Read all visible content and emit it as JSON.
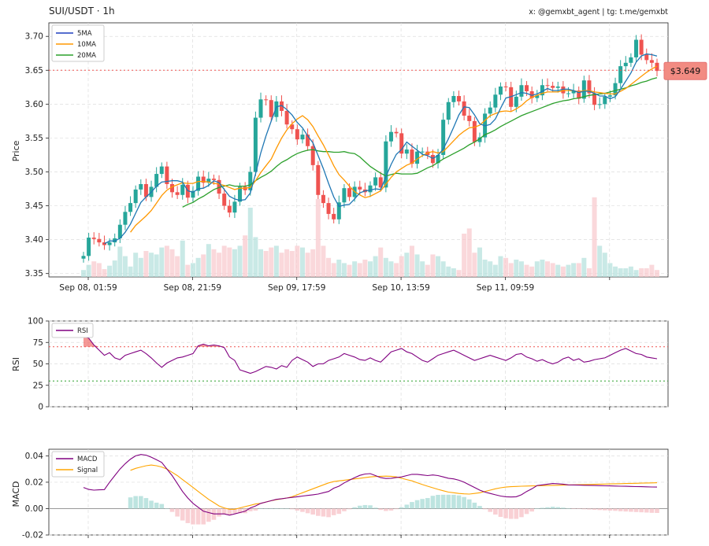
{
  "header": {
    "title": "SUI/USDT · 1h",
    "credit": "x: @gemxbt_agent | tg: t.me/gemxbt"
  },
  "colors": {
    "up": "#26a69a",
    "down": "#ef5350",
    "ma5": "#1f77b4",
    "ma10": "#ff9800",
    "ma20": "#2ca02c",
    "rsi": "#800080",
    "macd": "#800080",
    "signal": "#ffa500",
    "price_tag": "#f28b82"
  },
  "chart_data": [
    {
      "type": "candlestick",
      "ylabel": "Price",
      "ylim": [
        3.345,
        3.72
      ],
      "y_ticks": [
        3.35,
        3.4,
        3.45,
        3.5,
        3.55,
        3.6,
        3.65,
        3.7
      ],
      "x_tick_labels": [
        "Sep 08, 01:59",
        "Sep 08, 21:59",
        "Sep 09, 17:59",
        "Sep 10, 13:59",
        "Sep 11, 09:59"
      ],
      "x_tick_index": [
        0,
        20,
        40,
        60,
        80
      ],
      "last_price_label": "$3.649",
      "last_price": 3.649,
      "legend": [
        "5MA",
        "10MA",
        "20MA"
      ],
      "legend_position": "top-left",
      "grid": true,
      "close": [
        3.376,
        3.403,
        3.401,
        3.396,
        3.392,
        3.396,
        3.402,
        3.422,
        3.441,
        3.454,
        3.474,
        3.482,
        3.463,
        3.478,
        3.497,
        3.508,
        3.482,
        3.47,
        3.466,
        3.481,
        3.462,
        3.472,
        3.493,
        3.484,
        3.49,
        3.488,
        3.468,
        3.45,
        3.44,
        3.456,
        3.478,
        3.473,
        3.5,
        3.58,
        3.607,
        3.606,
        3.581,
        3.604,
        3.59,
        3.57,
        3.563,
        3.548,
        3.555,
        3.538,
        3.51,
        3.466,
        3.454,
        3.438,
        3.43,
        3.455,
        3.476,
        3.463,
        3.478,
        3.474,
        3.47,
        3.48,
        3.492,
        3.477,
        3.545,
        3.559,
        3.557,
        3.527,
        3.533,
        3.512,
        3.53,
        3.53,
        3.525,
        3.513,
        3.525,
        3.577,
        3.603,
        3.612,
        3.604,
        3.583,
        3.575,
        3.544,
        3.551,
        3.586,
        3.595,
        3.614,
        3.626,
        3.625,
        3.596,
        3.611,
        3.628,
        3.619,
        3.609,
        3.613,
        3.628,
        3.627,
        3.624,
        3.626,
        3.616,
        3.616,
        3.62,
        3.608,
        3.635,
        3.616,
        3.599,
        3.6,
        3.611,
        3.613,
        3.631,
        3.656,
        3.661,
        3.669,
        3.695,
        3.673,
        3.665,
        3.661,
        3.649
      ],
      "ma5": [
        null,
        null,
        null,
        null,
        3.394,
        3.398,
        3.398,
        3.402,
        3.411,
        3.423,
        3.439,
        3.455,
        3.463,
        3.47,
        3.479,
        3.485,
        3.486,
        3.487,
        3.487,
        3.485,
        3.472,
        3.47,
        3.475,
        3.476,
        3.48,
        3.487,
        3.484,
        3.474,
        3.464,
        3.46,
        3.458,
        3.459,
        3.469,
        3.497,
        3.528,
        3.553,
        3.575,
        3.596,
        3.598,
        3.592,
        3.584,
        3.573,
        3.565,
        3.553,
        3.543,
        3.524,
        3.505,
        3.483,
        3.463,
        3.449,
        3.451,
        3.452,
        3.46,
        3.469,
        3.472,
        3.473,
        3.475,
        3.474,
        3.493,
        3.511,
        3.526,
        3.533,
        3.544,
        3.538,
        3.532,
        3.526,
        3.524,
        3.52,
        3.524,
        3.534,
        3.549,
        3.566,
        3.584,
        3.596,
        3.595,
        3.584,
        3.571,
        3.568,
        3.57,
        3.578,
        3.594,
        3.609,
        3.611,
        3.614,
        3.617,
        3.616,
        3.613,
        3.615,
        3.619,
        3.623,
        3.62,
        3.62,
        3.622,
        3.622,
        3.62,
        3.617,
        3.619,
        3.619,
        3.616,
        3.612,
        3.612,
        3.608,
        3.611,
        3.622,
        3.634,
        3.646,
        3.662,
        3.671,
        3.674,
        3.673,
        3.671
      ],
      "ma10": [
        null,
        null,
        null,
        null,
        null,
        null,
        null,
        null,
        null,
        3.411,
        3.421,
        3.428,
        3.435,
        3.443,
        3.454,
        3.465,
        3.473,
        3.478,
        3.481,
        3.484,
        3.483,
        3.483,
        3.486,
        3.486,
        3.485,
        3.483,
        3.482,
        3.48,
        3.477,
        3.474,
        3.476,
        3.476,
        3.477,
        3.487,
        3.499,
        3.509,
        3.519,
        3.535,
        3.55,
        3.562,
        3.571,
        3.578,
        3.583,
        3.577,
        3.567,
        3.553,
        3.54,
        3.525,
        3.509,
        3.496,
        3.488,
        3.479,
        3.471,
        3.466,
        3.462,
        3.464,
        3.468,
        3.472,
        3.482,
        3.492,
        3.5,
        3.505,
        3.51,
        3.513,
        3.519,
        3.524,
        3.528,
        3.53,
        3.528,
        3.53,
        3.538,
        3.546,
        3.554,
        3.56,
        3.565,
        3.566,
        3.569,
        3.576,
        3.583,
        3.586,
        3.589,
        3.59,
        3.589,
        3.593,
        3.598,
        3.605,
        3.61,
        3.613,
        3.616,
        3.618,
        3.618,
        3.618,
        3.62,
        3.62,
        3.62,
        3.618,
        3.62,
        3.62,
        3.618,
        3.617,
        3.616,
        3.615,
        3.615,
        3.619,
        3.623,
        3.629,
        3.635,
        3.641,
        3.647,
        3.652,
        3.656
      ],
      "ma20": [
        null,
        null,
        null,
        null,
        null,
        null,
        null,
        null,
        null,
        null,
        null,
        null,
        null,
        null,
        null,
        null,
        null,
        null,
        null,
        3.448,
        3.452,
        3.455,
        3.46,
        3.464,
        3.469,
        3.474,
        3.477,
        3.479,
        3.481,
        3.479,
        3.479,
        3.479,
        3.481,
        3.487,
        3.492,
        3.496,
        3.501,
        3.508,
        3.514,
        3.518,
        3.523,
        3.527,
        3.53,
        3.532,
        3.533,
        3.531,
        3.53,
        3.53,
        3.529,
        3.529,
        3.53,
        3.528,
        3.527,
        3.522,
        3.515,
        3.508,
        3.503,
        3.498,
        3.494,
        3.496,
        3.498,
        3.497,
        3.497,
        3.497,
        3.498,
        3.502,
        3.506,
        3.509,
        3.514,
        3.519,
        3.523,
        3.527,
        3.531,
        3.535,
        3.54,
        3.544,
        3.549,
        3.555,
        3.558,
        3.562,
        3.567,
        3.571,
        3.575,
        3.579,
        3.583,
        3.586,
        3.589,
        3.592,
        3.595,
        3.598,
        3.601,
        3.603,
        3.605,
        3.606,
        3.608,
        3.609,
        3.611,
        3.613,
        3.614,
        3.615,
        3.616,
        3.618,
        3.62,
        3.622,
        3.624,
        3.627,
        3.629,
        3.632,
        3.634,
        3.637,
        3.639
      ],
      "volume_max": 1.0,
      "volume": [
        0.08,
        0.14,
        0.18,
        0.16,
        0.09,
        0.13,
        0.19,
        0.35,
        0.24,
        0.12,
        0.28,
        0.22,
        0.3,
        0.28,
        0.26,
        0.34,
        0.36,
        0.32,
        0.24,
        0.42,
        0.14,
        0.16,
        0.22,
        0.26,
        0.38,
        0.32,
        0.28,
        0.36,
        0.34,
        0.32,
        0.36,
        0.48,
        0.8,
        0.46,
        0.32,
        0.3,
        0.34,
        0.36,
        0.28,
        0.32,
        0.3,
        0.36,
        0.34,
        0.28,
        0.32,
        0.9,
        0.36,
        0.22,
        0.16,
        0.2,
        0.16,
        0.14,
        0.18,
        0.16,
        0.2,
        0.18,
        0.24,
        0.34,
        0.22,
        0.18,
        0.16,
        0.24,
        0.28,
        0.36,
        0.26,
        0.18,
        0.14,
        0.26,
        0.24,
        0.18,
        0.12,
        0.1,
        0.08,
        0.5,
        0.56,
        0.28,
        0.34,
        0.2,
        0.18,
        0.14,
        0.24,
        0.22,
        0.16,
        0.2,
        0.18,
        0.14,
        0.12,
        0.18,
        0.2,
        0.18,
        0.16,
        0.14,
        0.12,
        0.14,
        0.16,
        0.16,
        0.22,
        0.1,
        0.92,
        0.36,
        0.28,
        0.16,
        0.12,
        0.1,
        0.1,
        0.12,
        0.08,
        0.1,
        0.1,
        0.14,
        0.08
      ],
      "annotations": [
        {
          "type": "hline",
          "y": 3.65,
          "style": "dotted",
          "color": "#ef5350"
        }
      ]
    },
    {
      "type": "line",
      "ylabel": "RSI",
      "ylim": [
        0,
        100
      ],
      "y_ticks": [
        0,
        25,
        50,
        75,
        100
      ],
      "legend": [
        "RSI"
      ],
      "legend_position": "top-left",
      "levels": [
        70,
        30
      ],
      "values": [
        82,
        80,
        72,
        66,
        60,
        63,
        57,
        55,
        60,
        62,
        64,
        66,
        62,
        57,
        51,
        46,
        51,
        54,
        57,
        58,
        60,
        62,
        71,
        73,
        71,
        72,
        71,
        69,
        58,
        54,
        43,
        41,
        39,
        41,
        44,
        47,
        46,
        44,
        48,
        46,
        54,
        58,
        55,
        52,
        47,
        50,
        50,
        54,
        56,
        58,
        62,
        60,
        58,
        55,
        54,
        57,
        54,
        52,
        58,
        64,
        66,
        68,
        64,
        62,
        58,
        54,
        52,
        56,
        60,
        62,
        64,
        66,
        63,
        60,
        57,
        54,
        56,
        58,
        60,
        58,
        56,
        54,
        57,
        61,
        62,
        58,
        56,
        53,
        55,
        52,
        50,
        52,
        56,
        58,
        54,
        56,
        52,
        53,
        55,
        56,
        57,
        60,
        63,
        66,
        68,
        65,
        62,
        61,
        58,
        57,
        56
      ],
      "overbought_fill": [
        [
          0,
          3
        ],
        [
          21,
          27
        ]
      ]
    },
    {
      "type": "line",
      "ylabel": "MACD",
      "ylim": [
        -0.02,
        0.045
      ],
      "y_ticks": [
        -0.02,
        0.0,
        0.02,
        0.04
      ],
      "legend": [
        "MACD",
        "Signal"
      ],
      "legend_position": "top-left",
      "macd": [
        0.016,
        0.0145,
        0.014,
        0.0142,
        0.0144,
        0.02,
        0.025,
        0.03,
        0.034,
        0.0375,
        0.04,
        0.041,
        0.0405,
        0.039,
        0.037,
        0.035,
        0.03,
        0.025,
        0.019,
        0.013,
        0.008,
        0.004,
        0.001,
        -0.002,
        -0.003,
        -0.004,
        -0.004,
        -0.004,
        -0.005,
        -0.004,
        -0.003,
        -0.002,
        0.0005,
        0.002,
        0.004,
        0.005,
        0.006,
        0.007,
        0.0075,
        0.008,
        0.0085,
        0.009,
        0.0095,
        0.01,
        0.0105,
        0.011,
        0.012,
        0.013,
        0.0155,
        0.017,
        0.0195,
        0.0215,
        0.0235,
        0.0252,
        0.0262,
        0.0265,
        0.025,
        0.0235,
        0.0228,
        0.023,
        0.0236,
        0.024,
        0.025,
        0.026,
        0.026,
        0.0255,
        0.025,
        0.0255,
        0.025,
        0.024,
        0.023,
        0.0225,
        0.0215,
        0.02,
        0.018,
        0.016,
        0.014,
        0.0125,
        0.0115,
        0.0105,
        0.0095,
        0.009,
        0.0088,
        0.009,
        0.0105,
        0.013,
        0.015,
        0.0175,
        0.018,
        0.0185,
        0.019,
        0.0188,
        0.0185,
        0.018,
        0.0179,
        0.0178,
        0.0177,
        0.0176,
        0.0175,
        0.0174,
        0.0173,
        0.0172,
        0.0171,
        0.017,
        0.0169,
        0.0168,
        0.0167,
        0.0166,
        0.0165,
        0.0164,
        0.0163
      ],
      "signal": [
        null,
        null,
        null,
        null,
        null,
        null,
        null,
        null,
        null,
        0.029,
        0.0305,
        0.0315,
        0.0325,
        0.033,
        0.0325,
        0.0315,
        0.03,
        0.0275,
        0.025,
        0.022,
        0.019,
        0.016,
        0.013,
        0.01,
        0.007,
        0.0045,
        0.002,
        0.0005,
        -0.0005,
        -0.0005,
        0.0005,
        0.0015,
        0.0025,
        0.0035,
        0.004,
        0.005,
        0.006,
        0.0068,
        0.0074,
        0.008,
        0.009,
        0.0105,
        0.012,
        0.0135,
        0.015,
        0.0165,
        0.018,
        0.0195,
        0.0205,
        0.021,
        0.0215,
        0.022,
        0.0225,
        0.023,
        0.0235,
        0.024,
        0.0243,
        0.0245,
        0.0246,
        0.0245,
        0.024,
        0.023,
        0.022,
        0.021,
        0.0196,
        0.0182,
        0.017,
        0.0158,
        0.0146,
        0.0135,
        0.0125,
        0.012,
        0.0115,
        0.0112,
        0.011,
        0.0115,
        0.012,
        0.013,
        0.014,
        0.015,
        0.0158,
        0.0163,
        0.0166,
        0.0168,
        0.017,
        0.0171,
        0.0172,
        0.0173,
        0.0174,
        0.0175,
        0.0176,
        0.0177,
        0.0178,
        0.0179,
        0.018,
        0.0181,
        0.0182,
        0.0183,
        0.0184,
        0.0185,
        0.0186,
        0.0187,
        0.0188,
        0.0189,
        0.019,
        0.0191,
        0.0192,
        0.0193,
        0.0194,
        0.0195,
        0.0196
      ],
      "histogram": [
        null,
        null,
        null,
        null,
        null,
        null,
        null,
        null,
        null,
        0.0085,
        0.0095,
        0.0095,
        0.008,
        0.006,
        0.0045,
        0.0035,
        0.0,
        -0.0025,
        -0.006,
        -0.009,
        -0.011,
        -0.012,
        -0.012,
        -0.012,
        -0.01,
        -0.0085,
        -0.006,
        -0.0045,
        -0.0045,
        -0.0035,
        -0.0035,
        -0.0035,
        -0.002,
        -0.0015,
        0.0,
        0.0,
        0.0,
        0.0002,
        0.0001,
        0.0,
        -0.0005,
        -0.0015,
        -0.0025,
        -0.0035,
        -0.0045,
        -0.0055,
        -0.006,
        -0.0065,
        -0.005,
        -0.004,
        -0.002,
        -0.0005,
        0.001,
        0.0022,
        0.0027,
        0.0025,
        0.0007,
        -0.001,
        -0.0018,
        -0.0015,
        -0.0004,
        0.001,
        0.003,
        0.005,
        0.0064,
        0.0073,
        0.008,
        0.0097,
        0.0104,
        0.0105,
        0.0105,
        0.0105,
        0.01,
        0.0088,
        0.007,
        0.0045,
        0.002,
        -0.0005,
        -0.0025,
        -0.0045,
        -0.0063,
        -0.0073,
        -0.0078,
        -0.0078,
        -0.0065,
        -0.0041,
        -0.0022,
        0.0002,
        0.0006,
        0.001,
        0.0014,
        0.0011,
        0.0007,
        0.0001,
        -0.0001,
        -0.0003,
        -0.0005,
        -0.0007,
        -0.0009,
        -0.0011,
        -0.0013,
        -0.0015,
        -0.0017,
        -0.002,
        -0.0022,
        -0.0024,
        -0.0026,
        -0.0028,
        -0.003,
        -0.0032,
        -0.0033
      ]
    }
  ]
}
